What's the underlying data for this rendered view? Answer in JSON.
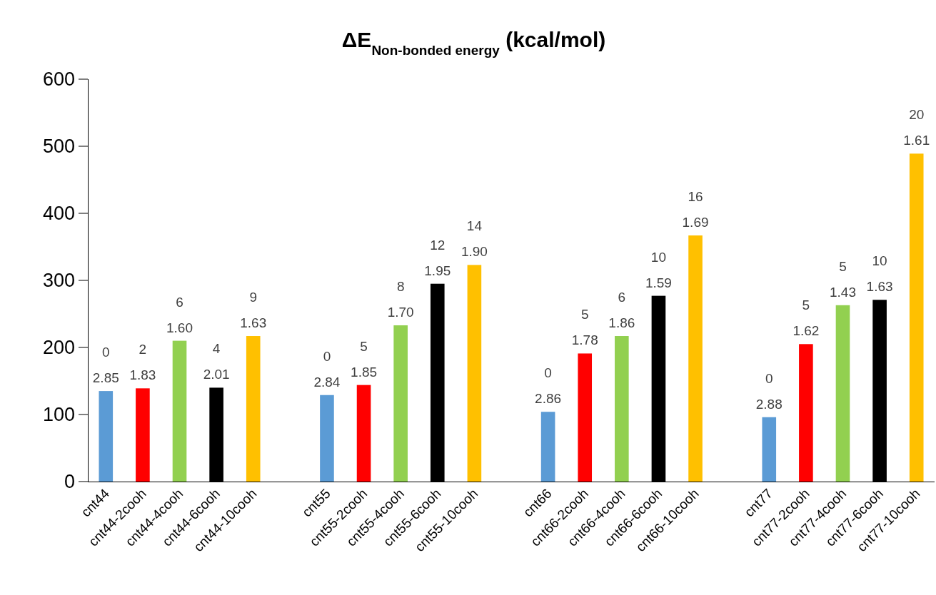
{
  "chart_data": {
    "type": "bar",
    "title": "ΔE$_{Non-bonded energy}$ (kcal/mol)",
    "categories": [
      "cnt44",
      "cnt44-2cooh",
      "cnt44-4cooh",
      "cnt44-6cooh",
      "cnt44-10cooh",
      null,
      "cnt55",
      "cnt55-2cooh",
      "cnt55-4cooh",
      "cnt55-6cooh",
      "cnt55-10cooh",
      null,
      "cnt66",
      "cnt66-2cooh",
      "cnt66-4cooh",
      "cnt66-6cooh",
      "cnt66-10cooh",
      null,
      "cnt77",
      "cnt77-2cooh",
      "cnt77-4cooh",
      "cnt77-6cooh",
      "cnt77-10cooh"
    ],
    "values": [
      135,
      139,
      210,
      140,
      217,
      null,
      129,
      144,
      233,
      295,
      323,
      null,
      104,
      191,
      217,
      277,
      367,
      null,
      96,
      205,
      263,
      271,
      489
    ],
    "colors": [
      "#5b9bd5",
      "#ff0000",
      "#92d050",
      "#000000",
      "#ffc000",
      null,
      "#5b9bd5",
      "#ff0000",
      "#92d050",
      "#000000",
      "#ffc000",
      null,
      "#5b9bd5",
      "#ff0000",
      "#92d050",
      "#000000",
      "#ffc000",
      null,
      "#5b9bd5",
      "#ff0000",
      "#92d050",
      "#000000",
      "#ffc000"
    ],
    "annotations": [
      {
        "text": "0\n2.85",
        "x": "cnt44",
        "y": 135
      },
      {
        "text": "2\n1.83",
        "x": "cnt44-2cooh",
        "y": 139
      },
      {
        "text": "6\n1.60",
        "x": "cnt44-4cooh",
        "y": 210
      },
      {
        "text": "4\n2.01",
        "x": "cnt44-6cooh",
        "y": 140
      },
      {
        "text": "9\n1.63",
        "x": "cnt44-10cooh",
        "y": 217
      },
      {
        "text": "0\n2.84",
        "x": "cnt55",
        "y": 129
      },
      {
        "text": "5\n1.85",
        "x": "cnt55-2cooh",
        "y": 144
      },
      {
        "text": "8\n1.70",
        "x": "cnt55-4cooh",
        "y": 233
      },
      {
        "text": "12\n1.95",
        "x": "cnt55-6cooh",
        "y": 295
      },
      {
        "text": "14\n1.90",
        "x": "cnt55-10cooh",
        "y": 323
      },
      {
        "text": "0\n2.86",
        "x": "cnt66",
        "y": 104
      },
      {
        "text": "5\n1.78",
        "x": "cnt66-2cooh",
        "y": 191
      },
      {
        "text": "6\n1.86",
        "x": "cnt66-4cooh",
        "y": 217
      },
      {
        "text": "10\n1.59",
        "x": "cnt66-6cooh",
        "y": 277
      },
      {
        "text": "16\n1.69",
        "x": "cnt66-10cooh",
        "y": 367
      },
      {
        "text": "0\n2.88",
        "x": "cnt77",
        "y": 96
      },
      {
        "text": "5\n1.62",
        "x": "cnt77-2cooh",
        "y": 205
      },
      {
        "text": "5\n1.43",
        "x": "cnt77-4cooh",
        "y": 263
      },
      {
        "text": "10\n1.63",
        "x": "cnt77-6cooh",
        "y": 271
      },
      {
        "text": "20\n1.61",
        "x": "cnt77-10cooh",
        "y": 489
      }
    ],
    "ylim": [
      0,
      600
    ],
    "yticks": [
      0,
      100,
      200,
      300,
      400,
      500,
      600
    ],
    "grid": false
  }
}
